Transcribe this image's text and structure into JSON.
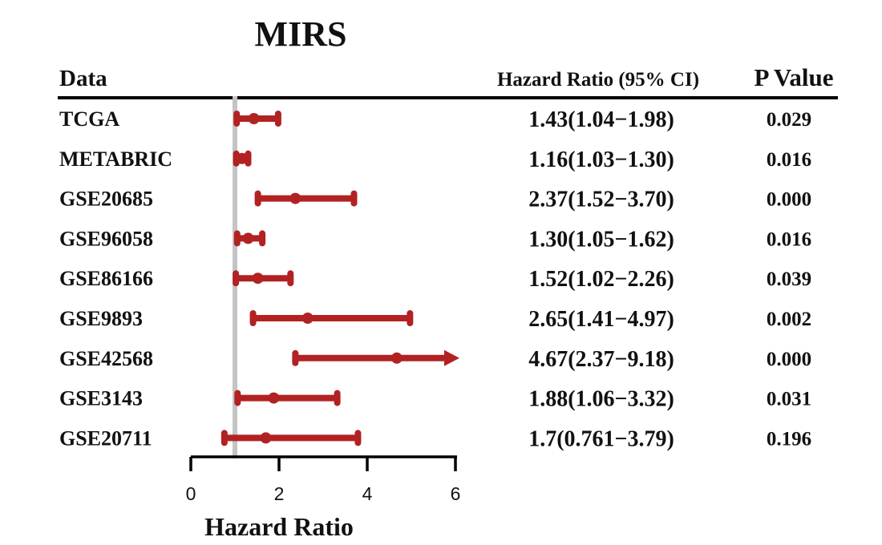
{
  "chart_data": {
    "type": "forest",
    "title": "MIRS",
    "xlabel": "Hazard Ratio",
    "headers": {
      "data": "Data",
      "hr": "Hazard Ratio (95% CI)",
      "p": "P Value"
    },
    "xlim": [
      0,
      6
    ],
    "xticks": [
      0,
      2,
      4,
      6
    ],
    "reference_line": 1,
    "color": "#b22222",
    "rows": [
      {
        "name": "TCGA",
        "hr": 1.43,
        "lower": 1.04,
        "upper": 1.98,
        "hr_text": "1.43(1.04−1.98)",
        "p": "0.029"
      },
      {
        "name": "METABRIC",
        "hr": 1.16,
        "lower": 1.03,
        "upper": 1.3,
        "hr_text": "1.16(1.03−1.30)",
        "p": "0.016"
      },
      {
        "name": "GSE20685",
        "hr": 2.37,
        "lower": 1.52,
        "upper": 3.7,
        "hr_text": "2.37(1.52−3.70)",
        "p": "0.000"
      },
      {
        "name": "GSE96058",
        "hr": 1.3,
        "lower": 1.05,
        "upper": 1.62,
        "hr_text": "1.30(1.05−1.62)",
        "p": "0.016"
      },
      {
        "name": "GSE86166",
        "hr": 1.52,
        "lower": 1.02,
        "upper": 2.26,
        "hr_text": "1.52(1.02−2.26)",
        "p": "0.039"
      },
      {
        "name": "GSE9893",
        "hr": 2.65,
        "lower": 1.41,
        "upper": 4.97,
        "hr_text": "2.65(1.41−4.97)",
        "p": "0.002"
      },
      {
        "name": "GSE42568",
        "hr": 4.67,
        "lower": 2.37,
        "upper": 9.18,
        "hr_text": "4.67(2.37−9.18)",
        "p": "0.000"
      },
      {
        "name": "GSE3143",
        "hr": 1.88,
        "lower": 1.06,
        "upper": 3.32,
        "hr_text": "1.88(1.06−3.32)",
        "p": "0.031"
      },
      {
        "name": "GSE20711",
        "hr": 1.7,
        "lower": 0.761,
        "upper": 3.79,
        "hr_text": "1.7(0.761−3.79)",
        "p": "0.196"
      }
    ]
  }
}
